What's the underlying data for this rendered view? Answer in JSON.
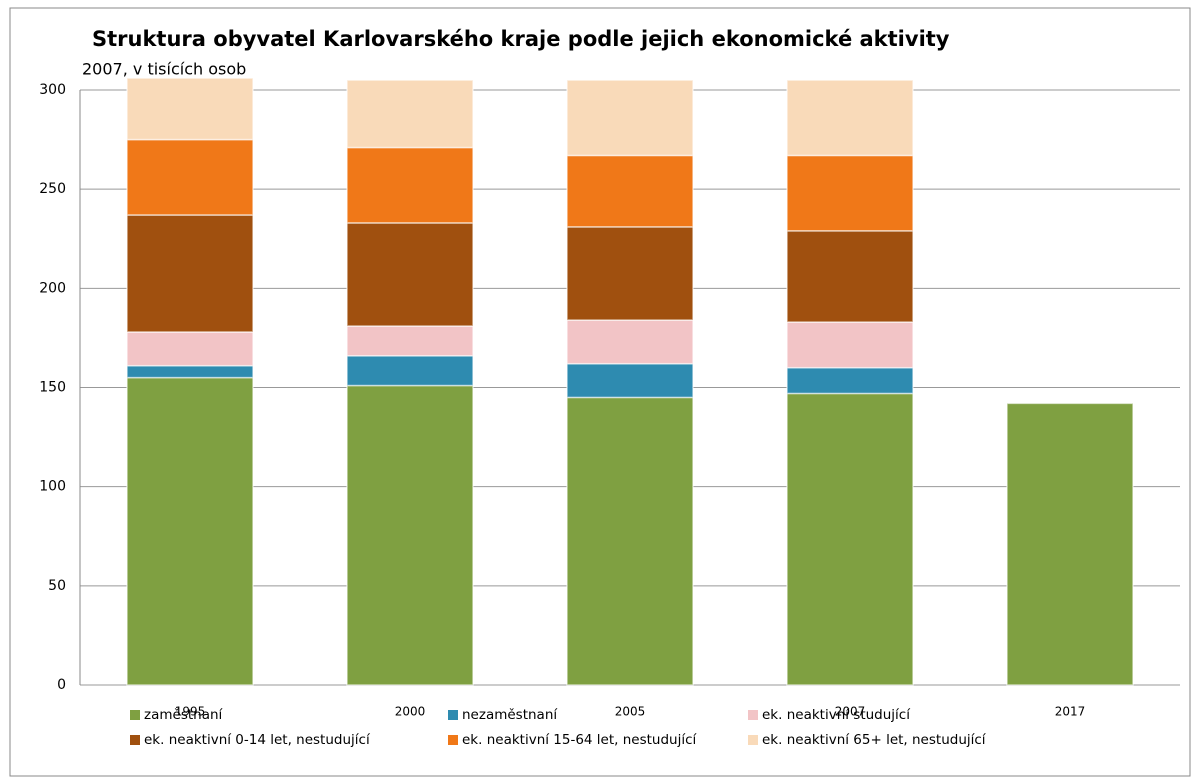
{
  "chart_data": {
    "type": "stacked_bar",
    "title": "Struktura obyvatel Karlovarského kraje podle jejich ekonomické aktivity",
    "subtitle": "2007, v tisících osob",
    "categories": [
      "1995",
      "2000",
      "2005",
      "2007",
      "2017"
    ],
    "series": [
      {
        "name": "zaměstnaní",
        "color": "#7fa041",
        "values": [
          155,
          151,
          145,
          147,
          142
        ]
      },
      {
        "name": "nezaměstnaní",
        "color": "#2e8bb0",
        "values": [
          6,
          15,
          17,
          13,
          null
        ]
      },
      {
        "name": "ek. neaktivní studující",
        "color": "#f2c4c6",
        "values": [
          17,
          15,
          22,
          23,
          null
        ]
      },
      {
        "name": "ek. neaktivní 0-14 let, nestudující",
        "color": "#a0500f",
        "values": [
          59,
          52,
          47,
          46,
          null
        ]
      },
      {
        "name": "ek. neaktivní 15-64 let, nestudující",
        "color": "#f07818",
        "values": [
          38,
          38,
          36,
          38,
          null
        ]
      },
      {
        "name": "ek. neaktivní 65+ let, nestudující",
        "color": "#f9dab9",
        "values": [
          31,
          34,
          38,
          38,
          null
        ]
      }
    ],
    "ylim": [
      0,
      300
    ],
    "yticks": [
      0,
      50,
      100,
      150,
      200,
      250,
      300
    ],
    "grid": true
  }
}
